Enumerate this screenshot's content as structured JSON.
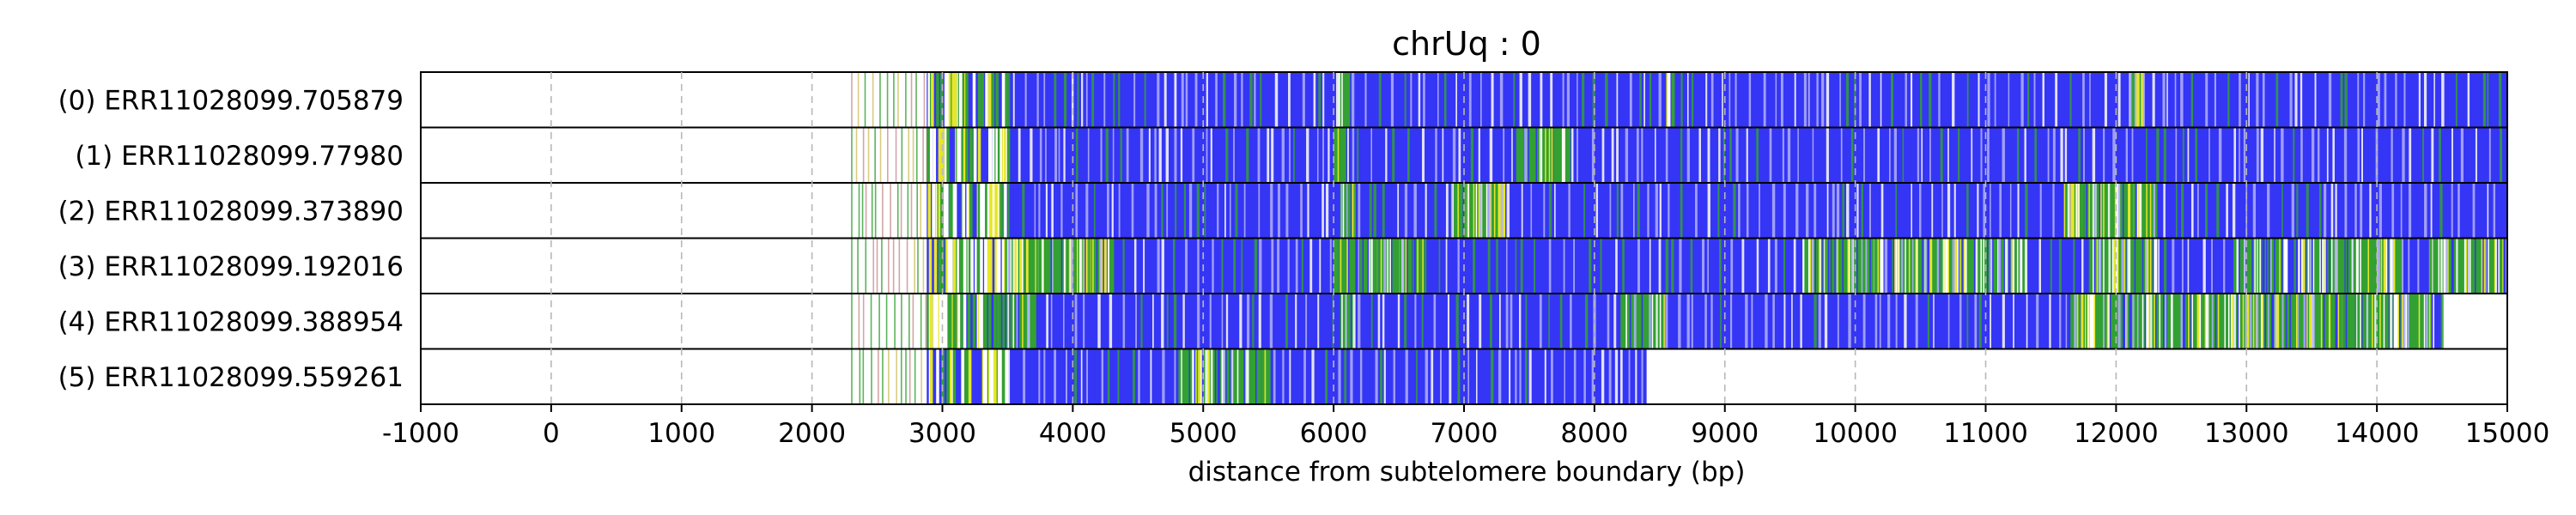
{
  "chart_data": {
    "type": "heatmap",
    "title": "chrUq : 0",
    "xlabel": "distance from subtelomere boundary (bp)",
    "xlim": [
      -1000,
      15000
    ],
    "xticks": [
      -1000,
      0,
      1000,
      2000,
      3000,
      4000,
      5000,
      6000,
      7000,
      8000,
      9000,
      10000,
      11000,
      12000,
      13000,
      14000,
      15000
    ],
    "tick_labels": [
      "-1000",
      "0",
      "1000",
      "2000",
      "3000",
      "4000",
      "5000",
      "6000",
      "7000",
      "8000",
      "9000",
      "10000",
      "11000",
      "12000",
      "13000",
      "14000",
      "15000"
    ],
    "grid": "vertical dashed at x ticks",
    "colors": {
      "base": "#3535f5",
      "green": "#33a033",
      "yellow": "#e6e62a",
      "white_gap": "#ffffff",
      "grid": "#b8b8b8"
    },
    "reads": [
      {
        "label": "(0) ERR11028099.705879",
        "start": 2300,
        "end": 15000,
        "green_regions": [
          [
            6030,
            6110
          ],
          [
            8550,
            8600
          ],
          [
            12100,
            12200
          ]
        ]
      },
      {
        "label": "(1) ERR11028099.77980",
        "start": 2300,
        "end": 15000,
        "green_regions": [
          [
            6000,
            6080
          ],
          [
            7400,
            7800
          ]
        ]
      },
      {
        "label": "(2) ERR11028099.373890",
        "start": 2300,
        "end": 15000,
        "green_regions": [
          [
            6050,
            6150
          ],
          [
            6900,
            7300
          ],
          [
            11600,
            12300
          ]
        ]
      },
      {
        "label": "(3) ERR11028099.192016",
        "start": 2300,
        "end": 15000,
        "green_regions": [
          [
            3500,
            4300
          ],
          [
            6000,
            6150
          ],
          [
            6200,
            6700
          ],
          [
            9600,
            10200
          ],
          [
            10300,
            11300
          ],
          [
            11800,
            12300
          ],
          [
            12900,
            13300
          ],
          [
            13400,
            14200
          ],
          [
            14400,
            15000
          ]
        ]
      },
      {
        "label": "(4) ERR11028099.388954",
        "start": 2300,
        "end": 14500,
        "green_regions": [
          [
            3450,
            3700
          ],
          [
            6050,
            6150
          ],
          [
            8200,
            8550
          ],
          [
            11650,
            14450
          ]
        ]
      },
      {
        "label": "(5) ERR11028099.559261",
        "start": 2300,
        "end": 8400,
        "green_regions": [
          [
            4800,
            5500
          ]
        ]
      }
    ]
  }
}
